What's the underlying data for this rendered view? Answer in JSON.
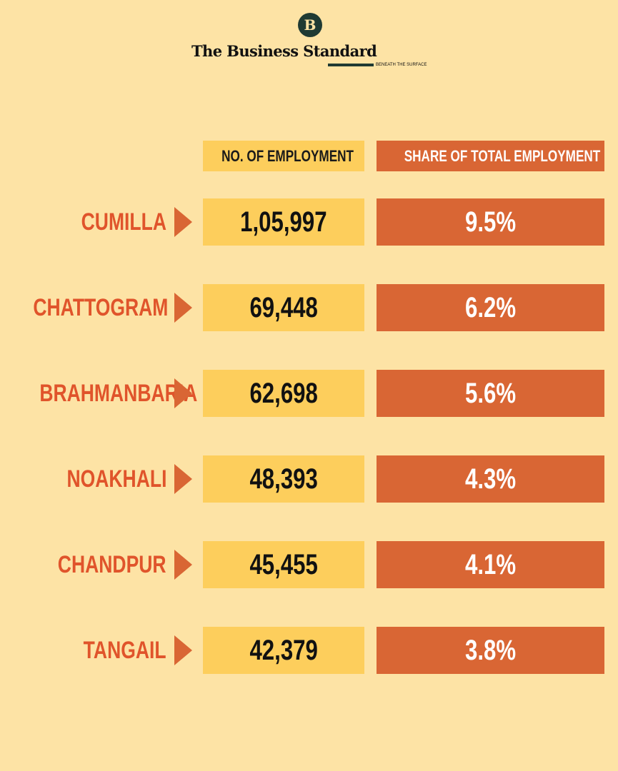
{
  "brand": {
    "name": "The Business Standard",
    "mark": "B",
    "tagline": "BENEATH THE SURFACE"
  },
  "colors": {
    "background": "#fde3a5",
    "employment_fill": "#fdce5c",
    "share_fill": "#d96634",
    "district_text": "#e0542b"
  },
  "chart_data": {
    "type": "table",
    "columns": [
      "NO. OF EMPLOYMENT",
      "SHARE OF TOTAL EMPLOYMENT"
    ],
    "rows": [
      {
        "district": "CUMILLA",
        "employment": "1,05,997",
        "share": "9.5%"
      },
      {
        "district": "CHATTOGRAM",
        "employment": "69,448",
        "share": "6.2%"
      },
      {
        "district": "BRAHMANBARIA",
        "employment": "62,698",
        "share": "5.6%"
      },
      {
        "district": "NOAKHALI",
        "employment": "48,393",
        "share": "4.3%"
      },
      {
        "district": "CHANDPUR",
        "employment": "45,455",
        "share": "4.1%"
      },
      {
        "district": "TANGAIL",
        "employment": "42,379",
        "share": "3.8%"
      }
    ]
  }
}
